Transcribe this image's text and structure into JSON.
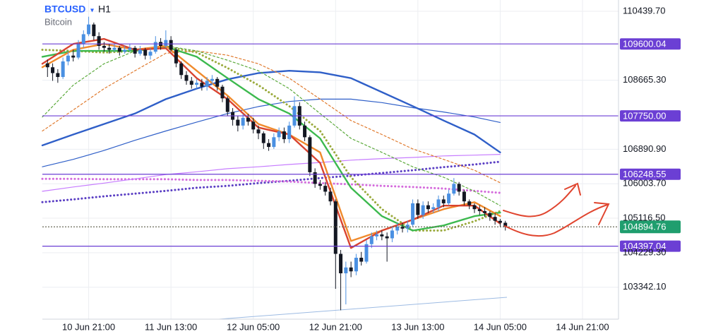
{
  "chart_data": {
    "type": "candlestick",
    "symbol": "BTCUSD",
    "interval": "H1",
    "subtitle": "Bitcoin",
    "ylim": [
      102520,
      110730
    ],
    "yticks": [
      {
        "value": 110439.7,
        "label": "110439.70"
      },
      {
        "value": 108665.3,
        "label": "108665.30"
      },
      {
        "value": 106890.9,
        "label": "106890.90"
      },
      {
        "value": 106003.7,
        "label": "106003.70"
      },
      {
        "value": 105116.5,
        "label": "105116.50"
      },
      {
        "value": 104229.3,
        "label": "104229.30"
      },
      {
        "value": 103342.1,
        "label": "103342.10"
      }
    ],
    "xlim": [
      "10 Jun 12:00",
      "15 Jun 04:00"
    ],
    "xticks": [
      "10 Jun 21:00",
      "11 Jun 13:00",
      "12 Jun 05:00",
      "12 Jun 21:00",
      "13 Jun 13:00",
      "14 Jun 05:00",
      "14 Jun 21:00"
    ],
    "grid": true,
    "up_color": "#4a90e2",
    "down_color": "#131722",
    "candles": {
      "x": [
        "10 Jun 13:00",
        "10 Jun 14:00",
        "10 Jun 15:00",
        "10 Jun 16:00",
        "10 Jun 17:00",
        "10 Jun 18:00",
        "10 Jun 19:00",
        "10 Jun 20:00",
        "10 Jun 21:00",
        "10 Jun 22:00",
        "10 Jun 23:00",
        "11 Jun 00:00",
        "11 Jun 01:00",
        "11 Jun 02:00",
        "11 Jun 03:00",
        "11 Jun 04:00",
        "11 Jun 05:00",
        "11 Jun 06:00",
        "11 Jun 07:00",
        "11 Jun 08:00",
        "11 Jun 09:00",
        "11 Jun 10:00",
        "11 Jun 11:00",
        "11 Jun 12:00",
        "11 Jun 13:00",
        "11 Jun 14:00",
        "11 Jun 15:00",
        "11 Jun 16:00",
        "11 Jun 17:00",
        "11 Jun 18:00",
        "11 Jun 19:00",
        "11 Jun 20:00",
        "11 Jun 21:00",
        "11 Jun 22:00",
        "11 Jun 23:00",
        "12 Jun 00:00",
        "12 Jun 01:00",
        "12 Jun 02:00",
        "12 Jun 03:00",
        "12 Jun 04:00",
        "12 Jun 05:00",
        "12 Jun 06:00",
        "12 Jun 07:00",
        "12 Jun 08:00",
        "12 Jun 09:00",
        "12 Jun 10:00",
        "12 Jun 11:00",
        "12 Jun 12:00",
        "12 Jun 13:00",
        "12 Jun 14:00",
        "12 Jun 15:00",
        "12 Jun 16:00",
        "12 Jun 17:00",
        "12 Jun 18:00",
        "12 Jun 19:00",
        "12 Jun 20:00",
        "12 Jun 21:00",
        "12 Jun 22:00",
        "12 Jun 23:00",
        "13 Jun 00:00",
        "13 Jun 01:00",
        "13 Jun 02:00",
        "13 Jun 03:00",
        "13 Jun 04:00",
        "13 Jun 05:00",
        "13 Jun 06:00",
        "13 Jun 07:00",
        "13 Jun 08:00",
        "13 Jun 09:00",
        "13 Jun 10:00",
        "13 Jun 11:00",
        "13 Jun 12:00",
        "13 Jun 13:00",
        "13 Jun 14:00",
        "13 Jun 15:00",
        "13 Jun 16:00",
        "13 Jun 17:00",
        "13 Jun 18:00",
        "13 Jun 19:00",
        "13 Jun 20:00",
        "13 Jun 21:00",
        "13 Jun 22:00",
        "13 Jun 23:00",
        "14 Jun 00:00",
        "14 Jun 01:00",
        "14 Jun 02:00",
        "14 Jun 03:00",
        "14 Jun 04:00",
        "14 Jun 05:00",
        "14 Jun 06:00"
      ],
      "open": [
        109100,
        109000,
        108850,
        108750,
        109150,
        109300,
        109250,
        109600,
        109850,
        110100,
        109800,
        109550,
        109500,
        109450,
        109500,
        109400,
        109450,
        109500,
        109350,
        109450,
        109300,
        109400,
        109650,
        109550,
        109700,
        109450,
        109100,
        108800,
        108650,
        108550,
        108600,
        108500,
        108650,
        108700,
        108500,
        108200,
        107850,
        107650,
        107500,
        107700,
        107600,
        107400,
        107300,
        107050,
        106950,
        107200,
        107350,
        107150,
        107500,
        108000,
        107500,
        107200,
        106300,
        106000,
        105950,
        105800,
        105550,
        104200,
        103700,
        103850,
        103750,
        104100,
        104000,
        104450,
        104650,
        104700,
        104650,
        104600,
        104800,
        104900,
        104850,
        104950,
        105500,
        105200,
        105450,
        105350,
        105400,
        105600,
        105500,
        105750,
        106000,
        105800,
        105550,
        105450,
        105350,
        105300,
        105250,
        105150,
        105050,
        105000
      ],
      "high": [
        109200,
        109100,
        108950,
        109250,
        109400,
        109450,
        109700,
        109950,
        110300,
        110150,
        109900,
        109650,
        109600,
        109600,
        109550,
        109550,
        109600,
        109550,
        109550,
        109500,
        109500,
        109800,
        109750,
        109950,
        109800,
        109500,
        109150,
        108900,
        108750,
        108700,
        108700,
        108750,
        108800,
        108750,
        108550,
        108250,
        107950,
        107750,
        107800,
        107800,
        107700,
        107500,
        107350,
        107150,
        107300,
        107450,
        107450,
        107600,
        108250,
        108100,
        107600,
        107250,
        106400,
        106100,
        106050,
        105900,
        105600,
        104300,
        104000,
        104000,
        104200,
        104250,
        104550,
        104750,
        104800,
        104800,
        104750,
        104900,
        105000,
        105000,
        105050,
        105600,
        105600,
        105550,
        105550,
        105500,
        105700,
        105700,
        105850,
        106150,
        106050,
        105850,
        105600,
        105500,
        105450,
        105400,
        105300,
        105250,
        105100,
        105050
      ],
      "low": [
        108750,
        108650,
        108600,
        108700,
        109050,
        109150,
        109200,
        109500,
        109800,
        109700,
        109450,
        109400,
        109350,
        109400,
        109300,
        109350,
        109400,
        109250,
        109300,
        109200,
        109200,
        109350,
        109450,
        109500,
        109400,
        109000,
        108700,
        108550,
        108450,
        108450,
        108400,
        108400,
        108550,
        108400,
        108100,
        107750,
        107500,
        107350,
        107400,
        107500,
        107300,
        107150,
        106900,
        106850,
        106900,
        107100,
        107050,
        107050,
        107450,
        107400,
        107100,
        106200,
        105900,
        105850,
        105700,
        105450,
        103300,
        102750,
        102900,
        103600,
        103650,
        103900,
        103950,
        104350,
        104550,
        104550,
        104000,
        104500,
        104700,
        104750,
        104750,
        104900,
        105100,
        105100,
        105250,
        105250,
        105300,
        105400,
        105450,
        105700,
        105700,
        105450,
        105350,
        105250,
        105200,
        105150,
        105050,
        104950,
        104900,
        104800
      ],
      "close": [
        109000,
        108850,
        108750,
        109150,
        109300,
        109250,
        109600,
        109850,
        110100,
        109800,
        109550,
        109500,
        109450,
        109500,
        109400,
        109450,
        109500,
        109350,
        109450,
        109300,
        109400,
        109650,
        109550,
        109700,
        109450,
        109100,
        108800,
        108650,
        108550,
        108600,
        108500,
        108650,
        108700,
        108500,
        108200,
        107850,
        107650,
        107500,
        107700,
        107600,
        107400,
        107300,
        107050,
        106950,
        107200,
        107350,
        107150,
        107500,
        108000,
        107500,
        107200,
        106300,
        106000,
        105950,
        105800,
        105550,
        104200,
        103700,
        103850,
        103750,
        104100,
        104000,
        104450,
        104650,
        104700,
        104650,
        104600,
        104800,
        104900,
        104850,
        104950,
        105500,
        105200,
        105450,
        105350,
        105400,
        105600,
        105500,
        105750,
        106000,
        105800,
        105550,
        105450,
        105350,
        105300,
        105250,
        105150,
        105050,
        105000,
        104895
      ]
    },
    "indicator_x": [
      "10 Jun 12:00",
      "10 Jun 18:00",
      "11 Jun 00:00",
      "11 Jun 06:00",
      "11 Jun 12:00",
      "11 Jun 18:00",
      "12 Jun 00:00",
      "12 Jun 06:00",
      "12 Jun 12:00",
      "12 Jun 18:00",
      "13 Jun 00:00",
      "13 Jun 06:00",
      "13 Jun 12:00",
      "13 Jun 18:00",
      "14 Jun 00:00",
      "14 Jun 05:00"
    ],
    "series": [
      {
        "color": "#5b3fc4",
        "dash": "dotted",
        "values": [
          105530,
          105600,
          105680,
          105750,
          105820,
          105900,
          105950,
          106020,
          106080,
          106150,
          106210,
          106280,
          106350,
          106430,
          106500,
          106570
        ]
      },
      {
        "color": "#d46bdc",
        "dash": "dotted",
        "values": [
          106130,
          106130,
          106120,
          106120,
          106120,
          106100,
          106100,
          106080,
          106060,
          106020,
          105990,
          105950,
          105920,
          105880,
          105820,
          105770
        ]
      },
      {
        "color": "#c77dff",
        "dash": "thin",
        "values": [
          105810,
          105920,
          106020,
          106130,
          106240,
          106310,
          106390,
          106440,
          106500,
          106550,
          106610,
          106650,
          106680,
          106720,
          106740,
          106760
        ]
      },
      {
        "color": "#2f5fc8",
        "dash": "thin",
        "values": [
          106440,
          106630,
          106860,
          107120,
          107360,
          107590,
          107810,
          107990,
          108120,
          108180,
          108180,
          108090,
          107960,
          107850,
          107720,
          107580
        ]
      },
      {
        "color": "#2f5fc8",
        "dash": "solid",
        "values": [
          106990,
          107270,
          107540,
          107810,
          108180,
          108450,
          108690,
          108850,
          108910,
          108870,
          108720,
          108360,
          108000,
          107630,
          107270,
          106810
        ]
      },
      {
        "color": "#e07a2e",
        "dash": "dashed",
        "values": [
          107360,
          107900,
          108450,
          108910,
          109360,
          109420,
          109310,
          109090,
          108720,
          108180,
          107630,
          107270,
          106900,
          106630,
          106350,
          106030
        ]
      },
      {
        "color": "#5caa3c",
        "dash": "dashed",
        "values": [
          107720,
          108540,
          109090,
          109420,
          109550,
          109420,
          109180,
          108910,
          108450,
          107810,
          107170,
          106810,
          106440,
          106170,
          105810,
          105440
        ]
      },
      {
        "color": "#9aaa3c",
        "dash": "dotted",
        "values": [
          109450,
          109420,
          109380,
          109420,
          109530,
          109380,
          108980,
          108540,
          108000,
          107360,
          106170,
          105350,
          104800,
          104800,
          105040,
          105300
        ]
      },
      {
        "color": "#3cb94e",
        "dash": "solid",
        "values": [
          109270,
          109420,
          109420,
          109420,
          109530,
          109270,
          108720,
          108180,
          107810,
          107170,
          105900,
          105170,
          104800,
          104930,
          105170,
          105260
        ]
      },
      {
        "color": "#f08a2c",
        "dash": "solid",
        "values": [
          109000,
          109450,
          109600,
          109450,
          109550,
          108910,
          108270,
          107540,
          107270,
          106810,
          104530,
          104800,
          105080,
          105350,
          105530,
          105170
        ]
      },
      {
        "color": "#d9432f",
        "dash": "solid",
        "values": [
          109090,
          109600,
          109730,
          109450,
          109490,
          108720,
          108180,
          107450,
          107270,
          106540,
          104350,
          104800,
          105080,
          105440,
          105440,
          104980
        ]
      }
    ],
    "levels": [
      109600.04,
      {
        "value": 107750,
        "label": "107750.00"
      },
      106248.55,
      104397.04
    ],
    "level_color": "#6b3fd4",
    "last_price": 104894.76,
    "last_price_color": "#1f9e6e"
  }
}
